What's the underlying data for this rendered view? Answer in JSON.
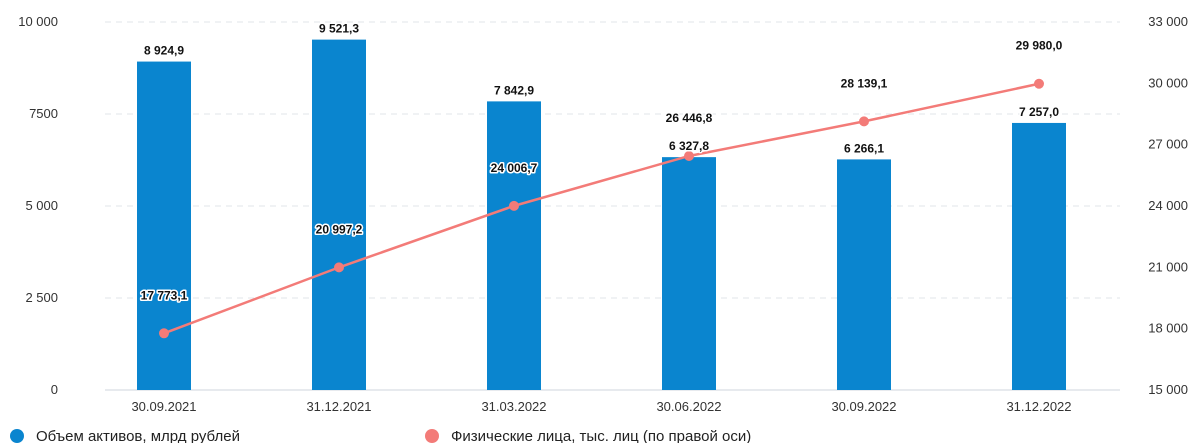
{
  "chart_data": {
    "type": "bar+line",
    "categories": [
      "30.09.2021",
      "31.12.2021",
      "31.03.2022",
      "30.06.2022",
      "30.09.2022",
      "31.12.2022"
    ],
    "series": [
      {
        "name": "Объем активов, млрд рублей",
        "type": "bar",
        "axis": "left",
        "color": "#0a85cf",
        "values": [
          8924.9,
          9521.3,
          7842.9,
          6327.8,
          6266.1,
          7257.0
        ],
        "labels": [
          "8 924,9",
          "9 521,3",
          "7 842,9",
          "6 327,8",
          "6 266,1",
          "7 257,0"
        ]
      },
      {
        "name": "Физические лица, тыс. лиц (по правой оси)",
        "type": "line",
        "axis": "right",
        "color": "#f37b78",
        "values": [
          17773.1,
          20997.2,
          24006.7,
          26446.8,
          28139.1,
          29980.0
        ],
        "labels": [
          "17 773,1",
          "20 997,2",
          "24 006,7",
          "26 446,8",
          "28 139,1",
          "29 980,0"
        ]
      }
    ],
    "y_left": {
      "lim": [
        0,
        10000
      ],
      "ticks": [
        0,
        2500,
        5000,
        7500,
        10000
      ],
      "tick_labels": [
        "0",
        "2 500",
        "5 000",
        "7500",
        "10 000"
      ]
    },
    "y_right": {
      "lim": [
        15000,
        33000
      ],
      "ticks": [
        15000,
        18000,
        21000,
        24000,
        27000,
        30000,
        33000
      ],
      "tick_labels": [
        "15 000",
        "18 000",
        "21 000",
        "24 000",
        "27 000",
        "30 000",
        "33 000"
      ]
    },
    "grid": "horizontal-dashed",
    "legend_position": "bottom-left"
  }
}
